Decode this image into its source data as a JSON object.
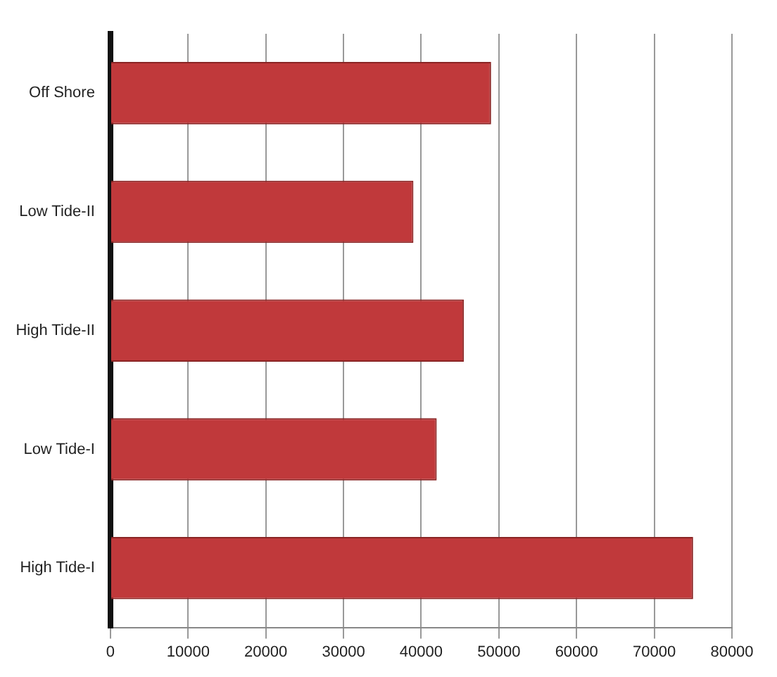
{
  "chart_data": {
    "type": "bar",
    "orientation": "horizontal",
    "categories": [
      "Off Shore",
      "Low Tide-II",
      "High Tide-II",
      "Low Tide-I",
      "High Tide-I"
    ],
    "values": [
      49000,
      39000,
      45500,
      42000,
      75000
    ],
    "color": "#c0393b",
    "xlim": [
      0,
      80000
    ],
    "xticks": [
      0,
      10000,
      20000,
      30000,
      40000,
      50000,
      60000,
      70000,
      80000
    ],
    "grid": "x"
  }
}
